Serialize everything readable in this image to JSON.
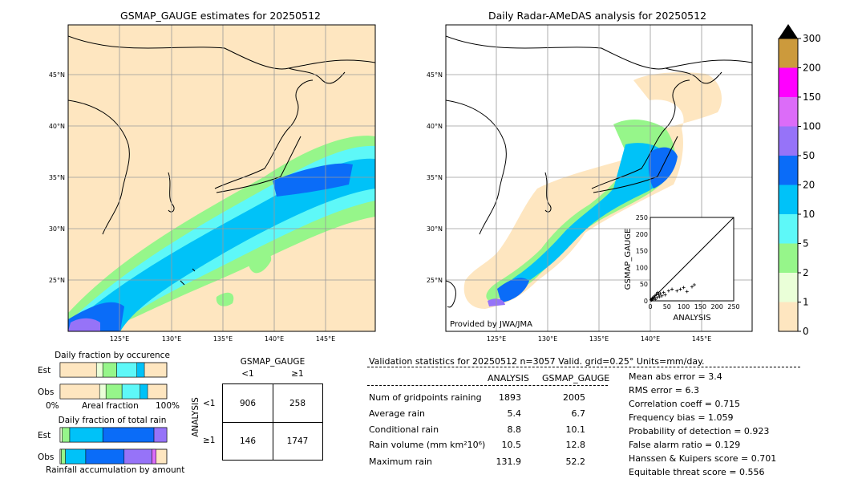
{
  "left_map": {
    "title": "GSMAP_GAUGE estimates for 20250512",
    "lat_labels": [
      "45°N",
      "40°N",
      "35°N",
      "30°N",
      "25°N"
    ],
    "lon_labels": [
      "125°E",
      "130°E",
      "135°E",
      "140°E",
      "145°E"
    ]
  },
  "right_map": {
    "title": "Daily Radar-AMeDAS analysis for 20250512",
    "lat_labels": [
      "45°N",
      "40°N",
      "35°N",
      "30°N",
      "25°N"
    ],
    "lon_labels": [
      "125°E",
      "130°E",
      "135°E",
      "140°E",
      "145°E"
    ],
    "credit": "Provided by JWA/JMA"
  },
  "colorbar": {
    "levels": [
      "0",
      "1",
      "2",
      "5",
      "10",
      "20",
      "50",
      "100",
      "150",
      "200",
      "300"
    ],
    "colors": [
      "#fee6c0",
      "#eaffd8",
      "#96f68a",
      "#5ef8f8",
      "#00c2f8",
      "#0a6cf8",
      "#9673f8",
      "#dc6cf8",
      "#ff00ff",
      "#cc9a3c"
    ],
    "extend_color": "#000000"
  },
  "scatter": {
    "xlabel": "ANALYSIS",
    "ylabel": "GSMAP_GAUGE",
    "ticks": [
      "0",
      "50",
      "100",
      "150",
      "200",
      "250"
    ],
    "points": [
      [
        2,
        3
      ],
      [
        4,
        2
      ],
      [
        5,
        6
      ],
      [
        6,
        8
      ],
      [
        8,
        5
      ],
      [
        10,
        12
      ],
      [
        12,
        9
      ],
      [
        14,
        15
      ],
      [
        15,
        4
      ],
      [
        18,
        20
      ],
      [
        20,
        10
      ],
      [
        22,
        25
      ],
      [
        25,
        18
      ],
      [
        28,
        12
      ],
      [
        30,
        22
      ],
      [
        35,
        15
      ],
      [
        40,
        25
      ],
      [
        45,
        18
      ],
      [
        55,
        30
      ],
      [
        65,
        35
      ],
      [
        80,
        30
      ],
      [
        90,
        35
      ],
      [
        100,
        40
      ],
      [
        110,
        28
      ],
      [
        125,
        42
      ],
      [
        132,
        48
      ]
    ]
  },
  "occurrence": {
    "title": "Daily fraction by occurence",
    "rows": [
      "Est",
      "Obs"
    ],
    "xlabel_left": "0%",
    "xlabel_mid": "Areal fraction",
    "xlabel_right": "100%",
    "est_fractions": [
      0.34,
      0.06,
      0.13,
      0.19,
      0.07
    ],
    "obs_fractions": [
      0.37,
      0.06,
      0.15,
      0.17,
      0.07
    ]
  },
  "total_rain": {
    "title": "Daily fraction of total rain",
    "rows": [
      "Est",
      "Obs"
    ],
    "footer": "Rainfall accumulation by amount",
    "est_fractions": [
      0.02,
      0.07,
      0.31,
      0.48,
      0.12
    ],
    "obs_fractions": [
      0.01,
      0.04,
      0.19,
      0.36,
      0.26,
      0.04
    ]
  },
  "contingency": {
    "col_title": "GSMAP_GAUGE",
    "col_labels": [
      "<1",
      "≥1"
    ],
    "row_title": "ANALYSIS",
    "row_labels": [
      "<1",
      "≥1"
    ],
    "cells": [
      [
        "906",
        "258"
      ],
      [
        "146",
        "1747"
      ]
    ]
  },
  "validation": {
    "header": "Validation statistics for 20250512  n=3057 Valid. grid=0.25° Units=mm/day.",
    "col_analysis": "ANALYSIS",
    "col_gsmap": "GSMAP_GAUGE",
    "rows": [
      {
        "label": "Num of gridpoints raining",
        "analysis": "1893",
        "gsmap": "2005"
      },
      {
        "label": "Average rain",
        "analysis": "5.4",
        "gsmap": "6.7"
      },
      {
        "label": "Conditional rain",
        "analysis": "8.8",
        "gsmap": "10.1"
      },
      {
        "label": "Rain volume (mm km²10⁶)",
        "analysis": "10.5",
        "gsmap": "12.8"
      },
      {
        "label": "Maximum rain",
        "analysis": "131.9",
        "gsmap": "52.2"
      }
    ],
    "scores": [
      "Mean abs error =    3.4",
      "RMS error =    6.3",
      "Correlation coeff =  0.715",
      "Frequency bias =  1.059",
      "Probability of detection =  0.923",
      "False alarm ratio =  0.129",
      "Hanssen & Kuipers score =  0.701",
      "Equitable threat score =  0.556"
    ]
  }
}
